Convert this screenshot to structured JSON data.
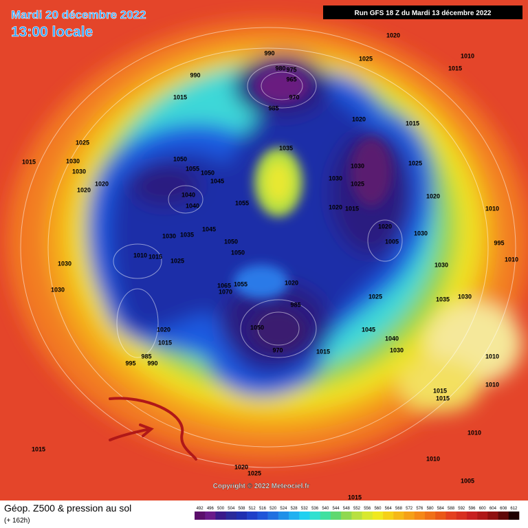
{
  "header": {
    "date": "Mardi 20 décembre 2022",
    "time": "13:00 locale",
    "run": "Run GFS 18 Z du Mardi 13 décembre 2022"
  },
  "footer": {
    "title": "Géop. Z500 & pression au sol",
    "lead": "(+ 162h)",
    "copyright": "Copyright © 2022 Meteociel.fr"
  },
  "colorbar": {
    "labels": [
      492,
      496,
      500,
      504,
      508,
      512,
      516,
      520,
      524,
      528,
      532,
      536,
      540,
      544,
      548,
      552,
      556,
      560,
      564,
      568,
      572,
      576,
      580,
      584,
      588,
      592,
      596,
      600,
      604,
      608,
      612
    ],
    "colors": [
      "#5b0f6b",
      "#6a1a8a",
      "#3a1a8a",
      "#2a2a9a",
      "#1f2fb0",
      "#1f40c8",
      "#1f55d8",
      "#2070e0",
      "#2090e8",
      "#20b0f0",
      "#20d0f0",
      "#30e0d0",
      "#40e0a0",
      "#60d870",
      "#90d850",
      "#b8e040",
      "#d8e830",
      "#f0e820",
      "#f5d018",
      "#f5b818",
      "#f5a018",
      "#f58818",
      "#f07018",
      "#ea5818",
      "#e44020",
      "#d83020",
      "#c82020",
      "#b01818",
      "#901010",
      "#600808",
      "#200000"
    ]
  },
  "pressure_labels": [
    990,
    980,
    975,
    965,
    970,
    985,
    990,
    1015,
    1025,
    1020,
    1010,
    1015,
    1020,
    1015,
    1025,
    1015,
    1030,
    1030,
    1020,
    1020,
    1050,
    1055,
    1050,
    1045,
    1040,
    1040,
    1035,
    1055,
    1030,
    1030,
    1025,
    1020,
    1015,
    1025,
    1020,
    1010,
    1020,
    1005,
    1030,
    995,
    1010,
    1030,
    1050,
    1050,
    1045,
    1035,
    1030,
    1025,
    1015,
    1010,
    1030,
    1030,
    1065,
    1055,
    1070,
    1020,
    985,
    1025,
    1035,
    1030,
    1045,
    1020,
    1015,
    995,
    985,
    990,
    1050,
    970,
    1040,
    1030,
    1015,
    1010,
    1010,
    1015,
    1015,
    1015,
    1020,
    1025,
    1010,
    1010,
    1005,
    1015
  ]
}
